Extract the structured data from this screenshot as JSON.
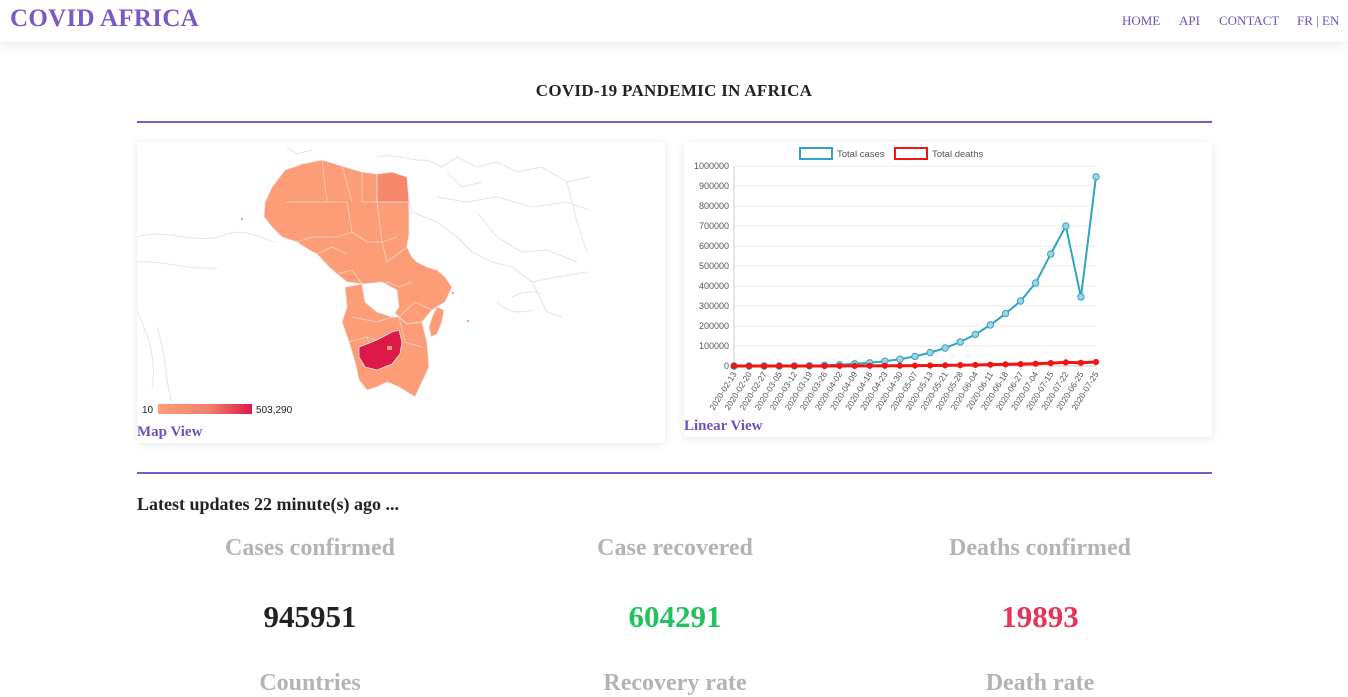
{
  "navbar": {
    "brand": "COVID AFRICA",
    "links": [
      "HOME",
      "API",
      "CONTACT",
      "FR | EN"
    ]
  },
  "page_title": "COVID-19 PANDEMIC IN AFRICA",
  "map_card": {
    "legend_min": "10",
    "legend_max": "503,290",
    "label": "Map View",
    "colors": {
      "low": "#fc9d78",
      "high": "#dc1947",
      "border": "#e6e6e6"
    }
  },
  "linear_card": {
    "label": "Linear View"
  },
  "updates_text": "Latest updates 22 minute(s) ago ...",
  "stats": {
    "cases_title": "Cases confirmed",
    "cases_value": "945951",
    "recovered_title": "Case recovered",
    "recovered_value": "604291",
    "deaths_title": "Deaths confirmed",
    "deaths_value": "19893",
    "countries_title": "Countries",
    "recovery_rate_title": "Recovery rate",
    "death_rate_title": "Death rate"
  },
  "colors": {
    "accent": "#7b58c8",
    "recovered": "#21c35e",
    "deaths": "#e8325a",
    "cases": "#222222"
  },
  "chart_data": {
    "type": "line",
    "x": [
      "2020-02-13",
      "2020-02-20",
      "2020-02-27",
      "2020-03-05",
      "2020-03-12",
      "2020-03-19",
      "2020-03-26",
      "2020-04-02",
      "2020-04-09",
      "2020-04-16",
      "2020-04-23",
      "2020-04-30",
      "2020-05-07",
      "2020-05-13",
      "2020-05-21",
      "2020-05-28",
      "2020-06-04",
      "2020-06-11",
      "2020-06-18",
      "2020-06-27",
      "2020-07-04",
      "2020-07-15",
      "2020-07-22",
      "2020-06-25",
      "2020-07-25"
    ],
    "series": [
      {
        "name": "Total cases",
        "color": "#2fa4c4",
        "values": [
          0,
          0,
          0,
          100,
          500,
          1500,
          3500,
          6500,
          11000,
          16000,
          24000,
          34000,
          48000,
          67000,
          90000,
          120000,
          158000,
          205000,
          262000,
          325000,
          415000,
          560000,
          700000,
          345000,
          945951
        ]
      },
      {
        "name": "Total deaths",
        "color": "#f01414",
        "values": [
          0,
          0,
          0,
          2,
          15,
          50,
          120,
          250,
          500,
          800,
          1100,
          1500,
          2000,
          2600,
          3300,
          4200,
          5200,
          6600,
          8000,
          9500,
          11500,
          14500,
          18000,
          16000,
          19893
        ]
      }
    ],
    "ylim": [
      0,
      1000000
    ],
    "yticks": [
      0,
      100000,
      200000,
      300000,
      400000,
      500000,
      600000,
      700000,
      800000,
      900000,
      1000000
    ],
    "legend": "top"
  }
}
